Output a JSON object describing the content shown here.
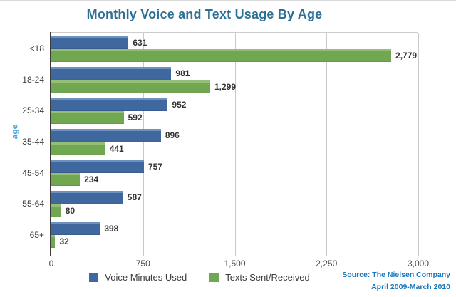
{
  "title": "Monthly Voice and Text Usage By Age",
  "chart_data": {
    "type": "bar",
    "orientation": "horizontal",
    "title": "Monthly Voice and Text Usage By Age",
    "categories": [
      "<18",
      "18-24",
      "25-34",
      "35-44",
      "45-54",
      "55-64",
      "65+"
    ],
    "series": [
      {
        "name": "Voice Minutes Used",
        "color": "#3e689e",
        "values": [
          631,
          981,
          952,
          896,
          757,
          587,
          398
        ],
        "labels": [
          "631",
          "981",
          "952",
          "896",
          "757",
          "587",
          "398"
        ]
      },
      {
        "name": "Texts Sent/Received",
        "color": "#72a751",
        "values": [
          2779,
          1299,
          592,
          441,
          234,
          80,
          32
        ],
        "labels": [
          "2,779",
          "1,299",
          "592",
          "441",
          "234",
          "80",
          "32"
        ]
      }
    ],
    "xlabel": "",
    "ylabel": "age",
    "xlim": [
      0,
      3000
    ],
    "xticks": [
      {
        "value": 0,
        "label": "0"
      },
      {
        "value": 750,
        "label": "750"
      },
      {
        "value": 1500,
        "label": "1,500"
      },
      {
        "value": 2250,
        "label": "2,250"
      },
      {
        "value": 3000,
        "label": "3,000"
      }
    ],
    "grid": true,
    "legend_position": "bottom"
  },
  "colors": {
    "title": "#2d7095",
    "voice_bar": "#3e689e",
    "text_bar": "#72a751",
    "axis": "#3b3b3b",
    "gridline": "#c9c9c9",
    "ylabel": "#44a3da",
    "source_text": "#1777bd"
  },
  "source": {
    "line1": "Source: The Nielsen Company",
    "line2": "April 2009-March 2010"
  }
}
